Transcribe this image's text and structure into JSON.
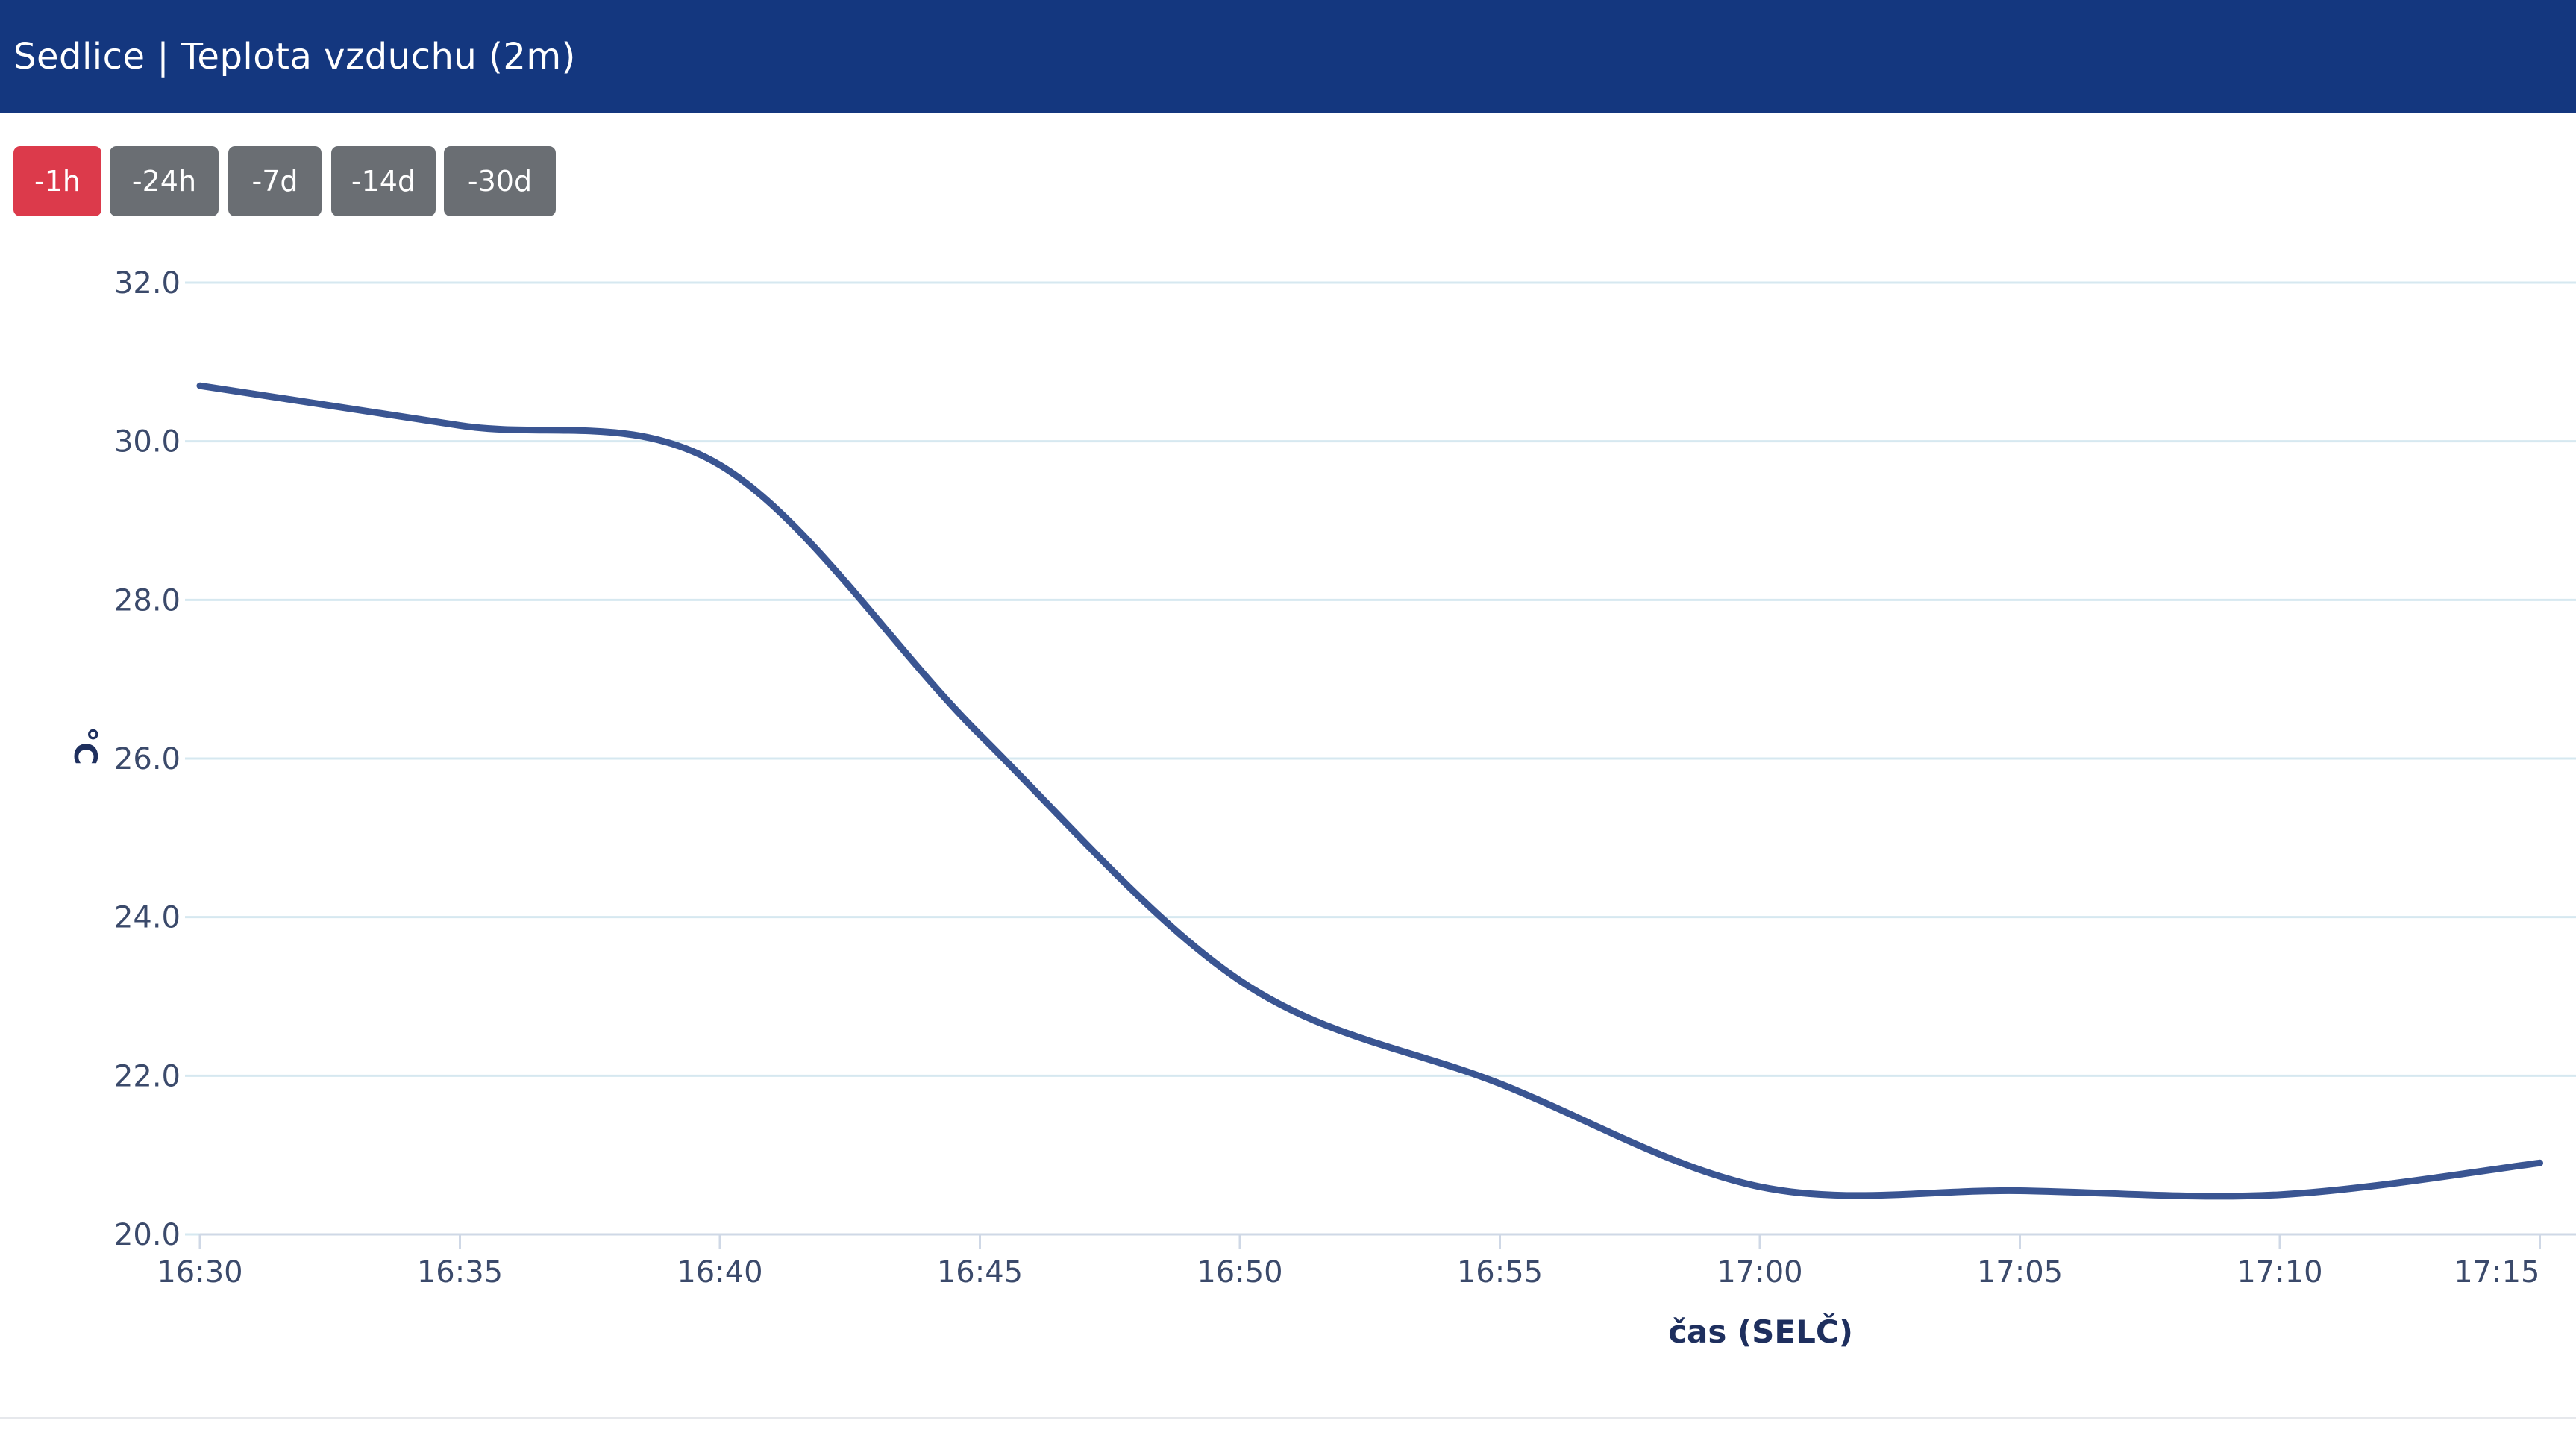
{
  "header": {
    "title": "Sedlice | Teplota vzduchu (2m)"
  },
  "range_buttons": [
    {
      "label": "-1h",
      "active": true
    },
    {
      "label": "-24h",
      "active": false
    },
    {
      "label": "-7d",
      "active": false
    },
    {
      "label": "-14d",
      "active": false
    },
    {
      "label": "-30d",
      "active": false
    }
  ],
  "colors": {
    "header_bg": "#14377f",
    "active_button": "#dc3a4b",
    "inactive_button": "#6a6e73",
    "series_line": "#3a5592",
    "gridline": "#d6e8f0"
  },
  "chart_data": {
    "type": "line",
    "title": "",
    "xlabel": "čas (SELČ)",
    "ylabel": "°C",
    "ylim": [
      20,
      32
    ],
    "y_ticks": [
      "20.0",
      "22.0",
      "24.0",
      "26.0",
      "28.0",
      "30.0",
      "32.0"
    ],
    "x_ticks": [
      "16:30",
      "16:35",
      "16:40",
      "16:45",
      "16:50",
      "16:55",
      "17:00",
      "17:05",
      "17:10",
      "17:15"
    ],
    "xlim": [
      "16:30",
      "17:15"
    ],
    "grid": true,
    "series": [
      {
        "x": [
          "16:30",
          "16:35",
          "16:40",
          "16:45",
          "16:50",
          "16:55",
          "17:00",
          "17:05",
          "17:10",
          "17:15"
        ],
        "values": [
          30.7,
          30.2,
          29.7,
          26.3,
          23.2,
          21.9,
          20.6,
          20.55,
          20.5,
          20.9
        ]
      }
    ]
  }
}
